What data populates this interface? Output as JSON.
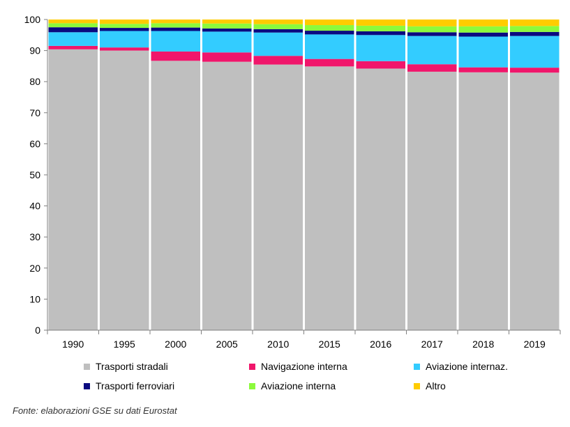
{
  "chart_data": {
    "type": "bar",
    "stacked": true,
    "categories": [
      "1990",
      "1995",
      "2000",
      "2005",
      "2010",
      "2015",
      "2016",
      "2017",
      "2018",
      "2019"
    ],
    "ylim": [
      0,
      100
    ],
    "yticks": [
      0,
      10,
      20,
      30,
      40,
      50,
      60,
      70,
      80,
      90,
      100
    ],
    "grid": false,
    "legend_position": "bottom",
    "series": [
      {
        "name": "Trasporti stradali",
        "color": "#bfbfbf",
        "values": [
          90.4,
          90.0,
          86.7,
          86.4,
          85.5,
          84.9,
          84.2,
          83.2,
          83.0,
          82.9
        ]
      },
      {
        "name": "Navigazione interna",
        "color": "#f0166b",
        "values": [
          1.1,
          1.0,
          3.0,
          3.0,
          2.8,
          2.4,
          2.4,
          2.4,
          1.6,
          1.6
        ]
      },
      {
        "name": "Aviazione internaz.",
        "color": "#33ccff",
        "values": [
          4.4,
          5.3,
          6.6,
          6.7,
          7.5,
          7.9,
          8.4,
          9.1,
          9.9,
          10.2
        ]
      },
      {
        "name": "Trasporti ferroviari",
        "color": "#0a0a80",
        "values": [
          1.6,
          1.0,
          1.1,
          1.0,
          1.1,
          1.2,
          1.2,
          1.2,
          1.3,
          1.3
        ]
      },
      {
        "name": "Aviazione interna",
        "color": "#8cfa3c",
        "values": [
          1.3,
          1.3,
          1.4,
          1.6,
          1.6,
          1.8,
          1.8,
          1.9,
          2.0,
          1.9
        ]
      },
      {
        "name": "Altro",
        "color": "#ffcc00",
        "values": [
          1.2,
          1.4,
          1.2,
          1.3,
          1.5,
          1.8,
          2.0,
          2.2,
          2.2,
          2.1
        ]
      }
    ]
  },
  "source_note": "Fonte: elaborazioni GSE su dati Eurostat"
}
